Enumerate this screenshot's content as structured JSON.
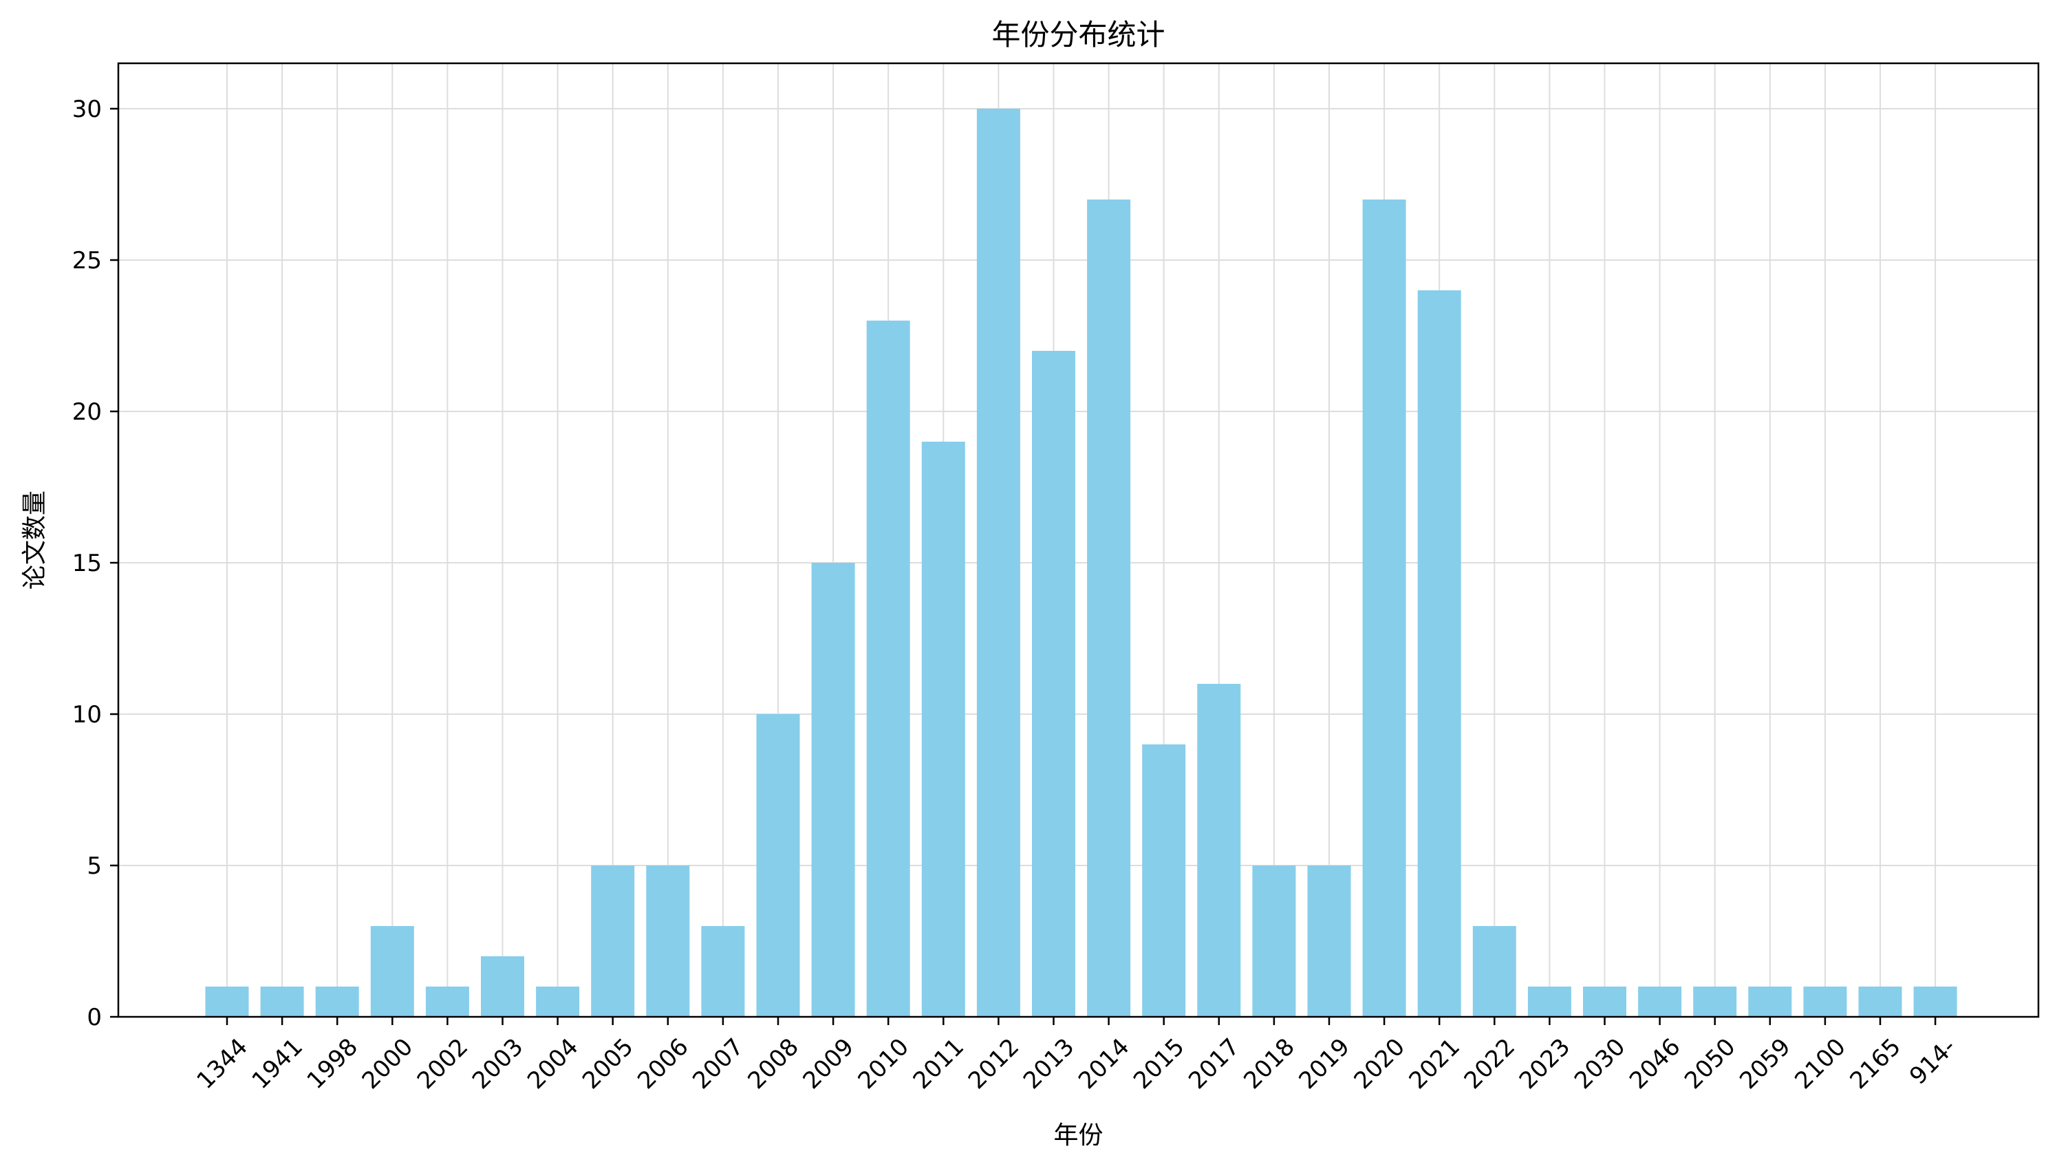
{
  "chart_data": {
    "type": "bar",
    "title": "年份分布统计",
    "xlabel": "年份",
    "ylabel": "论文数量",
    "categories": [
      "1344",
      "1941",
      "1998",
      "2000",
      "2002",
      "2003",
      "2004",
      "2005",
      "2006",
      "2007",
      "2008",
      "2009",
      "2010",
      "2011",
      "2012",
      "2013",
      "2014",
      "2015",
      "2017",
      "2018",
      "2019",
      "2020",
      "2021",
      "2022",
      "2023",
      "2030",
      "2046",
      "2050",
      "2059",
      "2100",
      "2165",
      "914-"
    ],
    "values": [
      1,
      1,
      1,
      3,
      1,
      2,
      1,
      5,
      5,
      3,
      10,
      15,
      23,
      19,
      30,
      22,
      27,
      9,
      11,
      5,
      5,
      27,
      24,
      3,
      1,
      1,
      1,
      1,
      1,
      1,
      1,
      1
    ],
    "ylim": [
      0,
      31.5
    ],
    "yticks": [
      0,
      5,
      10,
      15,
      20,
      25,
      30
    ],
    "grid": true,
    "bar_color": "#87ceeb",
    "grid_color": "#dddddd"
  }
}
